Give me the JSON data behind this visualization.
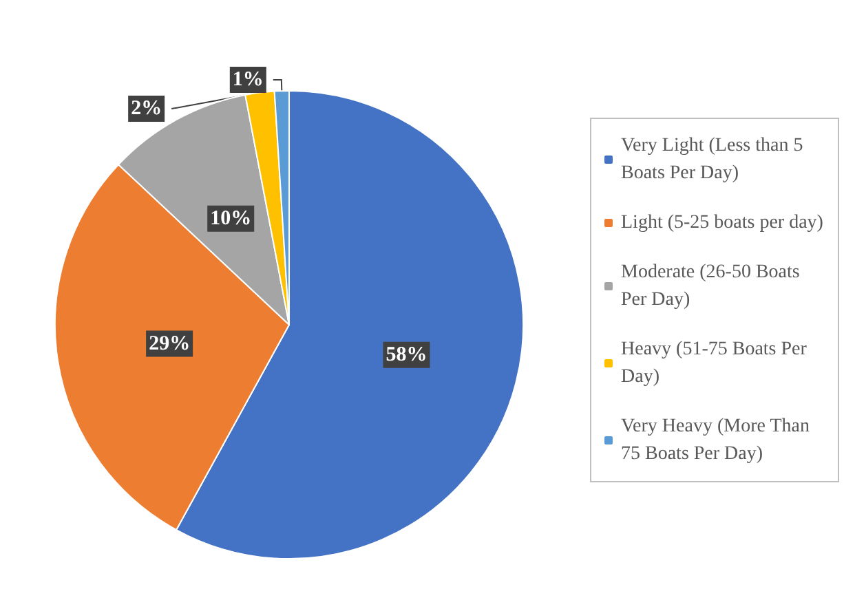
{
  "chart_data": {
    "type": "pie",
    "categories": [
      "Very Light (Less than 5 Boats Per Day)",
      "Light (5-25 boats per day)",
      "Moderate (26-50 Boats Per Day)",
      "Heavy (51-75 Boats Per Day)",
      "Very Heavy (More Than 75 Boats Per Day)"
    ],
    "values": [
      58,
      29,
      10,
      2,
      1
    ],
    "colors": [
      "#4472c4",
      "#ed7d31",
      "#a5a5a5",
      "#ffc000",
      "#5b9bd5"
    ],
    "value_labels": [
      "58%",
      "29%",
      "10%",
      "2%",
      "1%"
    ],
    "legend": "right"
  }
}
